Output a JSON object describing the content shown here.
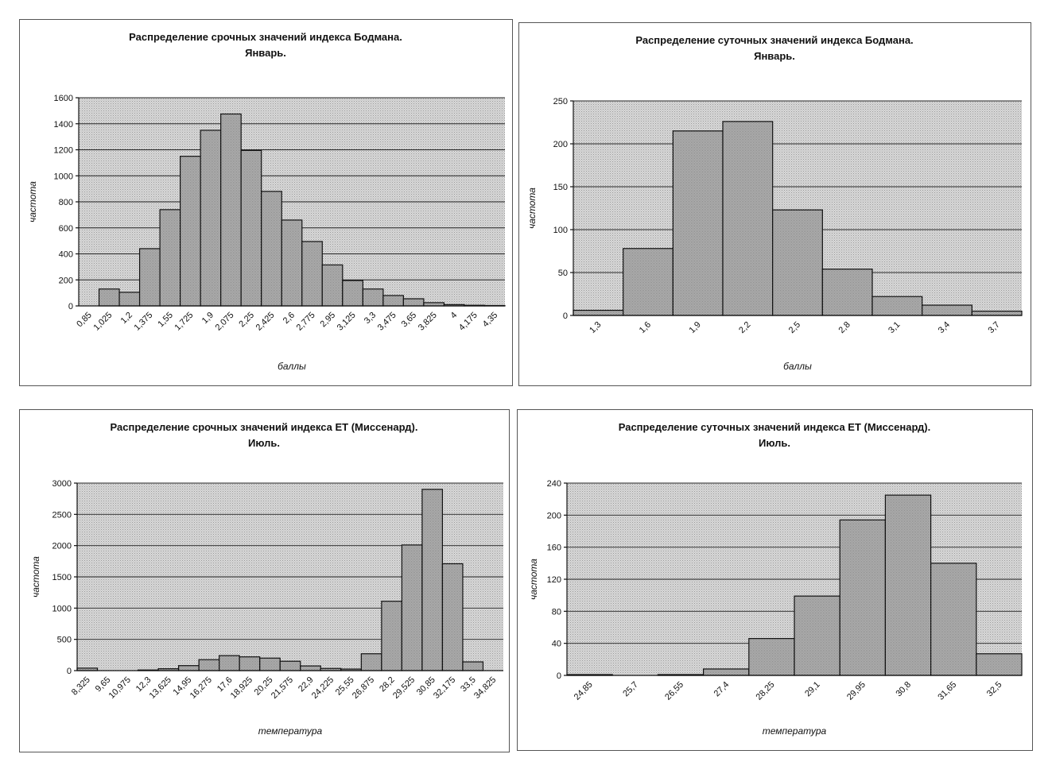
{
  "chart_data": [
    {
      "type": "bar",
      "title": "Распределение срочных значений индекса Бодмана.",
      "subtitle": "Январь.",
      "xlabel": "баллы",
      "ylabel": "частота",
      "ylim": [
        0,
        1600
      ],
      "yticks": [
        "0",
        "200",
        "400",
        "600",
        "800",
        "1000",
        "1200",
        "1400",
        "1600"
      ],
      "categories": [
        "0,85",
        "1,025",
        "1,2",
        "1,375",
        "1,55",
        "1,725",
        "1,9",
        "2,075",
        "2,25",
        "2,425",
        "2,6",
        "2,775",
        "2,95",
        "3,125",
        "3,3",
        "3,475",
        "3,65",
        "3,825",
        "4",
        "4,175",
        "4,35"
      ],
      "values": [
        0,
        130,
        105,
        440,
        740,
        1150,
        1350,
        1475,
        1195,
        880,
        660,
        495,
        315,
        195,
        130,
        80,
        55,
        25,
        10,
        5,
        3
      ]
    },
    {
      "type": "bar",
      "title": "Распределение суточных значений индекса Бодмана.",
      "subtitle": "Январь.",
      "xlabel": "баллы",
      "ylabel": "частота",
      "ylim": [
        0,
        250
      ],
      "yticks": [
        "0",
        "50",
        "100",
        "150",
        "200",
        "250"
      ],
      "categories": [
        "1,3",
        "1,6",
        "1,9",
        "2,2",
        "2,5",
        "2,8",
        "3,1",
        "3,4",
        "3,7"
      ],
      "values": [
        6,
        78,
        215,
        226,
        123,
        54,
        22,
        12,
        5
      ]
    },
    {
      "type": "bar",
      "title": "Распределение срочных значений индекса ЕТ (Миссенард).",
      "subtitle": "Июль.",
      "xlabel": "температура",
      "ylabel": "частота",
      "ylim": [
        0,
        3000
      ],
      "yticks": [
        "0",
        "500",
        "1000",
        "1500",
        "2000",
        "2500",
        "3000"
      ],
      "categories": [
        "8,325",
        "9,65",
        "10,975",
        "12,3",
        "13,625",
        "14,95",
        "16,275",
        "17,6",
        "18,925",
        "20,25",
        "21,575",
        "22,9",
        "24,225",
        "25,55",
        "26,875",
        "28,2",
        "29,525",
        "30,85",
        "32,175",
        "33,5",
        "34,825"
      ],
      "values": [
        40,
        0,
        0,
        10,
        30,
        80,
        175,
        240,
        220,
        200,
        150,
        75,
        35,
        25,
        270,
        1110,
        2010,
        2900,
        1710,
        140,
        0
      ]
    },
    {
      "type": "bar",
      "title": "Распределение суточных значений индекса ЕТ (Миссенард).",
      "subtitle": "Июль.",
      "xlabel": "температура",
      "ylabel": "частота",
      "ylim": [
        0,
        240
      ],
      "yticks": [
        "0",
        "40",
        "80",
        "120",
        "160",
        "200",
        "240"
      ],
      "categories": [
        "24,85",
        "25,7",
        "26,55",
        "27,4",
        "28,25",
        "29,1",
        "29,95",
        "30,8",
        "31,65",
        "32,5"
      ],
      "values": [
        1,
        0,
        1,
        8,
        46,
        99,
        194,
        225,
        140,
        27
      ]
    }
  ]
}
